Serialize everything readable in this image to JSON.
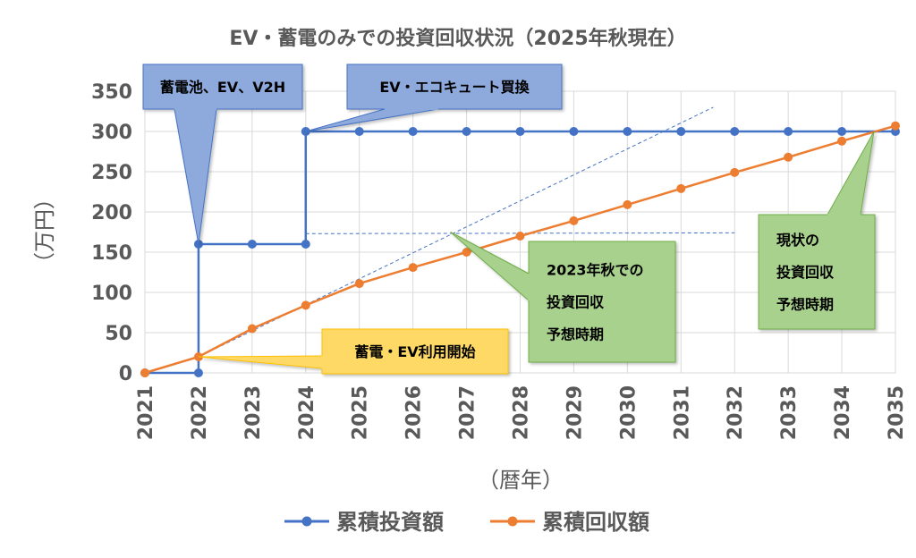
{
  "chart_data": {
    "type": "line",
    "title": "EV・蓄電のみでの投資回収状況（2025年秋現在）",
    "xlabel": "（暦年）",
    "ylabel": "（万円）",
    "categories": [
      "2021",
      "2022",
      "2023",
      "2024",
      "2025",
      "2026",
      "2027",
      "2028",
      "2029",
      "2030",
      "2031",
      "2032",
      "2033",
      "2034",
      "2035"
    ],
    "ylim": [
      0,
      350
    ],
    "yticks": [
      0,
      50,
      100,
      150,
      200,
      250,
      300,
      350
    ],
    "grid": true,
    "legend_position": "bottom",
    "series": [
      {
        "name": "累積投資額",
        "color": "#4472C4",
        "step": true,
        "values": [
          0,
          160,
          160,
          300,
          300,
          300,
          300,
          300,
          300,
          300,
          300,
          300,
          300,
          300,
          300
        ],
        "step_from": [
          0,
          0,
          160,
          160,
          300,
          300,
          300,
          300,
          300,
          300,
          300,
          300,
          300,
          300,
          300
        ]
      },
      {
        "name": "累積回収額",
        "color": "#ED7D31",
        "values": [
          0,
          20,
          55,
          84,
          111,
          131,
          150,
          170,
          189,
          209,
          229,
          249,
          268,
          288,
          307
        ]
      }
    ],
    "guides": [
      {
        "kind": "trend",
        "from": [
          2022,
          20
        ],
        "to": [
          2031.6,
          330
        ]
      },
      {
        "kind": "level",
        "from": [
          2024,
          173
        ],
        "to": [
          2032,
          174
        ]
      }
    ],
    "annotations": [
      {
        "id": "a1",
        "lines": [
          "蓄電池、EV、V2H"
        ],
        "fill": "#8EA9DB",
        "stroke": "#4472C4",
        "target": [
          2022,
          160
        ]
      },
      {
        "id": "a2",
        "lines": [
          "EV・エコキュート買換"
        ],
        "fill": "#8EA9DB",
        "stroke": "#4472C4",
        "target": [
          2024,
          300
        ]
      },
      {
        "id": "a3",
        "lines": [
          "蓄電・EV利用開始"
        ],
        "fill": "#FFD966",
        "stroke": "#FFC000",
        "target": [
          2022,
          20
        ]
      },
      {
        "id": "a4",
        "lines": [
          "2023年秋での",
          "投資回収",
          "予想時期"
        ],
        "fill": "#A9D18E",
        "stroke": "#70AD47",
        "target": [
          2026.7,
          175
        ]
      },
      {
        "id": "a5",
        "lines": [
          "現状の",
          "投資回収",
          "予想時期"
        ],
        "fill": "#A9D18E",
        "stroke": "#70AD47",
        "target": [
          2034.6,
          300
        ]
      }
    ]
  },
  "colors": {
    "invest": "#4472C4",
    "recover": "#ED7D31",
    "grid": "#D9D9D9",
    "text": "#595959"
  }
}
